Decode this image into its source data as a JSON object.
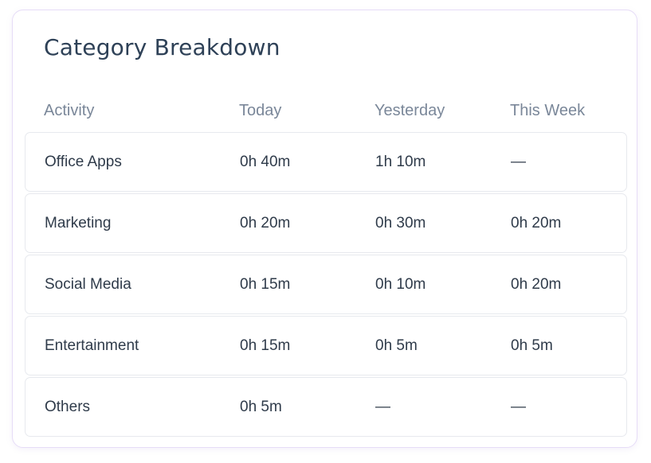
{
  "card": {
    "title": "Category Breakdown"
  },
  "table": {
    "headers": [
      "Activity",
      "Today",
      "Yesterday",
      "This Week"
    ],
    "rows": [
      [
        "Office Apps",
        "0h 40m",
        "1h 10m",
        "—"
      ],
      [
        "Marketing",
        "0h 20m",
        "0h 30m",
        "0h 20m"
      ],
      [
        "Social Media",
        "0h 15m",
        "0h 10m",
        "0h 20m"
      ],
      [
        "Entertainment",
        "0h 15m",
        "0h 5m",
        "0h 5m"
      ],
      [
        "Others",
        "0h 5m",
        "—",
        "—"
      ]
    ]
  }
}
